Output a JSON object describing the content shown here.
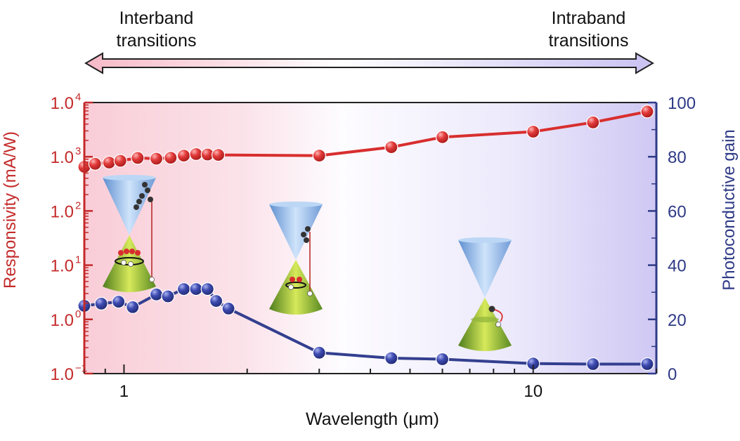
{
  "annotations": {
    "left_line1": "Interband",
    "left_line2": "transitions",
    "right_line1": "Intraband",
    "right_line2": "transitions"
  },
  "colors": {
    "responsivity": "#d82e2e",
    "gain": "#333f8f",
    "left_axis": "#c42a2a",
    "right_axis": "#2e3a86",
    "bg_left": "#f9cdd7",
    "bg_right": "#cfc8f3"
  },
  "chart_data": {
    "type": "line",
    "xlabel": "Wavelength (μm)",
    "x_scale": "log",
    "xlim": [
      0.8,
      20
    ],
    "x_ticks": [
      {
        "value": 1,
        "label": "1"
      },
      {
        "value": 10,
        "label": "10"
      }
    ],
    "y_left": {
      "label": "Responsivity (mA/W)",
      "scale": "log",
      "lim": [
        0.1,
        10000
      ],
      "ticks": [
        {
          "value": 0.1,
          "base": "1.0",
          "exp": "−1"
        },
        {
          "value": 1,
          "base": "1.0",
          "exp": "0"
        },
        {
          "value": 10,
          "base": "1.0",
          "exp": "1"
        },
        {
          "value": 100,
          "base": "1.0",
          "exp": "2"
        },
        {
          "value": 1000,
          "base": "1.0",
          "exp": "3"
        },
        {
          "value": 10000,
          "base": "1.0",
          "exp": "4"
        }
      ]
    },
    "y_right": {
      "label": "Photoconductive gain",
      "scale": "linear",
      "lim": [
        0,
        100
      ],
      "ticks": [
        0,
        20,
        40,
        60,
        80,
        100
      ]
    },
    "series": [
      {
        "name": "Responsivity",
        "axis": "left",
        "x": [
          0.8,
          0.85,
          0.92,
          0.98,
          1.08,
          1.2,
          1.3,
          1.4,
          1.5,
          1.6,
          1.7,
          3.0,
          4.5,
          6.0,
          10.0,
          14.0,
          19.0
        ],
        "y": [
          650,
          740,
          780,
          840,
          950,
          920,
          960,
          1050,
          1120,
          1100,
          1080,
          1050,
          1500,
          2300,
          2900,
          4300,
          6800
        ]
      },
      {
        "name": "Photoconductive gain",
        "axis": "right",
        "x": [
          0.8,
          0.88,
          0.97,
          1.05,
          1.2,
          1.28,
          1.4,
          1.5,
          1.6,
          1.68,
          1.8,
          3.0,
          4.5,
          6.0,
          10.0,
          14.0,
          19.0
        ],
        "y": [
          25,
          25.8,
          26.5,
          24.5,
          29.2,
          28.5,
          31.2,
          31.2,
          31.2,
          26.8,
          24.0,
          7.7,
          5.7,
          5.3,
          3.7,
          3.5,
          3.5
        ]
      }
    ]
  }
}
